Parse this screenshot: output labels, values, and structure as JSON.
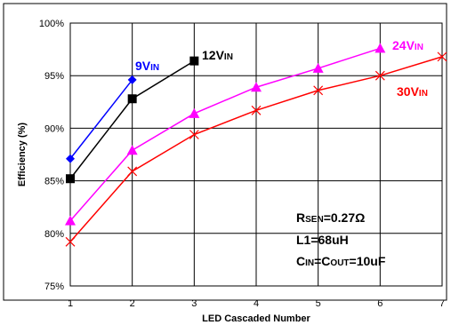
{
  "chart_data": {
    "type": "line",
    "title": "",
    "xlabel": "LED Cascaded Number",
    "ylabel": "Efficiency (%)",
    "xlim": [
      1,
      7
    ],
    "ylim": [
      75,
      100
    ],
    "x_ticks": [
      "1",
      "2",
      "3",
      "4",
      "5",
      "6",
      "7"
    ],
    "y_ticks": [
      "75%",
      "80%",
      "85%",
      "90%",
      "95%",
      "100%"
    ],
    "grid": true,
    "series": [
      {
        "name": "9VIN",
        "label_main": "9V",
        "label_sub": "IN",
        "color": "#0000ff",
        "marker": "diamond",
        "x": [
          1,
          2
        ],
        "y": [
          87.1,
          94.6
        ]
      },
      {
        "name": "12VIN",
        "label_main": "12V",
        "label_sub": "IN",
        "color": "#000000",
        "marker": "square",
        "x": [
          1,
          2,
          3
        ],
        "y": [
          85.2,
          92.8,
          96.4
        ]
      },
      {
        "name": "24VIN",
        "label_main": "24V",
        "label_sub": "IN",
        "color": "#ff00ff",
        "marker": "triangle",
        "x": [
          1,
          2,
          3,
          4,
          5,
          6
        ],
        "y": [
          81.2,
          87.9,
          91.4,
          93.9,
          95.7,
          97.6
        ]
      },
      {
        "name": "30VIN",
        "label_main": "30V",
        "label_sub": "IN",
        "color": "#ff0000",
        "marker": "x",
        "x": [
          1,
          2,
          3,
          4,
          5,
          6,
          7
        ],
        "y": [
          79.2,
          85.9,
          89.4,
          91.7,
          93.6,
          95.0,
          96.8
        ]
      }
    ],
    "annotations": [
      {
        "main": "R",
        "sub": "SEN",
        "rest": "=0.27Ω"
      },
      {
        "main": "L1=68uH",
        "sub": "",
        "rest": ""
      },
      {
        "main": "C",
        "sub": "IN",
        "rest": "=C",
        "sub2": "OUT",
        "rest2": "=10uF"
      }
    ]
  }
}
